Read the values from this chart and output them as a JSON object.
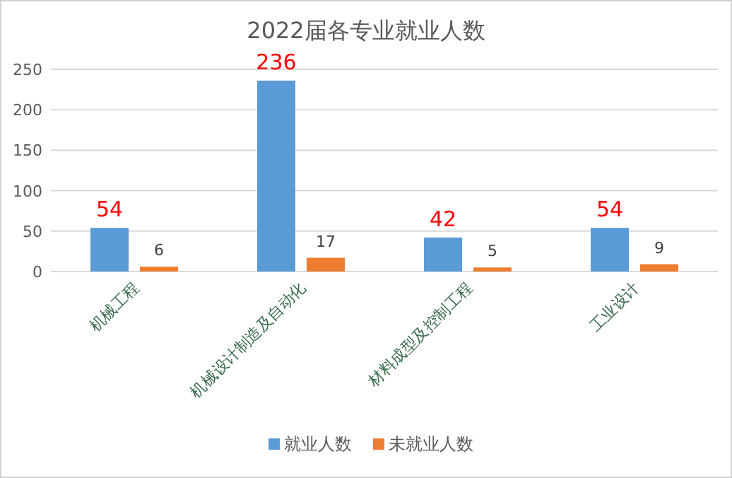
{
  "chart_data": {
    "type": "bar",
    "title": "2022届各专业就业人数",
    "categories": [
      "机械工程",
      "机械设计制造及自动化",
      "材料成型及控制工程",
      "工业设计"
    ],
    "series": [
      {
        "name": "就业人数",
        "color": "#5b9bd5",
        "values": [
          54,
          236,
          42,
          54
        ]
      },
      {
        "name": "未就业人数",
        "color": "#ed7d31",
        "values": [
          6,
          17,
          5,
          9
        ]
      }
    ],
    "ylim": [
      0,
      250
    ],
    "yticks": [
      0,
      50,
      100,
      150,
      200,
      250
    ],
    "grid": "y",
    "legend": "bottom",
    "data_labels": true
  }
}
